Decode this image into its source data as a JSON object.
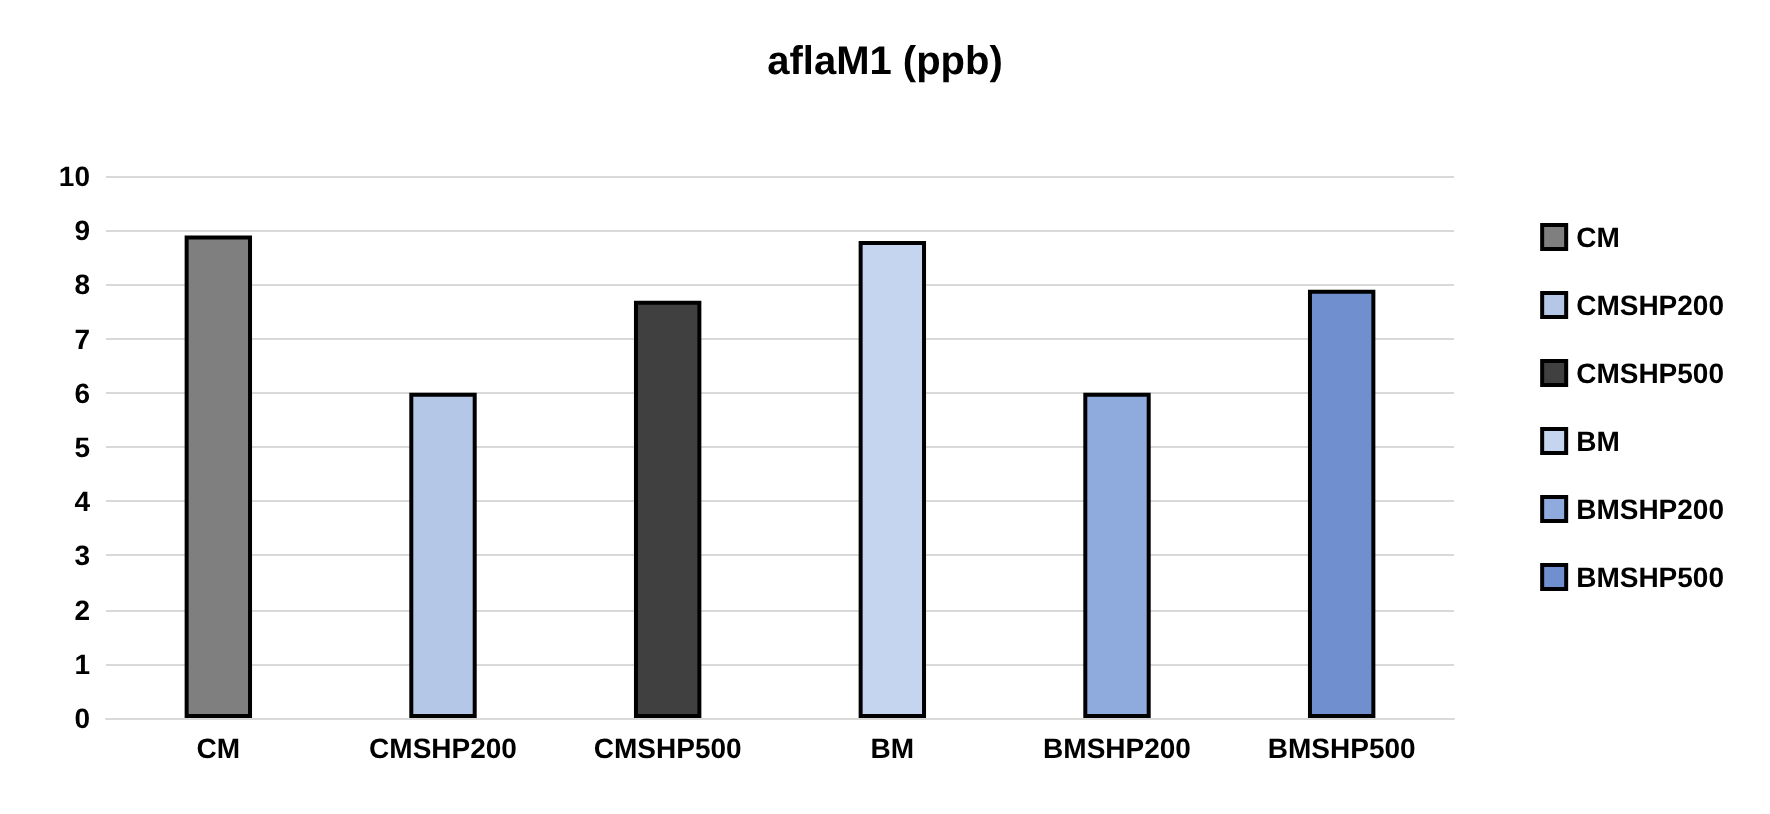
{
  "chart_data": {
    "type": "bar",
    "title": "aflaM1 (ppb)",
    "categories": [
      "CM",
      "CMSHP200",
      "CMSHP500",
      "BM",
      "BMSHP200",
      "BMSHP500"
    ],
    "series": [
      {
        "name": "CM",
        "color": "#7f7f7f",
        "values": [
          8.9,
          null,
          null,
          null,
          null,
          null
        ]
      },
      {
        "name": "CMSHP200",
        "color": "#b4c7e7",
        "values": [
          null,
          6.0,
          null,
          null,
          null,
          null
        ]
      },
      {
        "name": "CMSHP500",
        "color": "#404040",
        "values": [
          null,
          null,
          7.7,
          null,
          null,
          null
        ]
      },
      {
        "name": "BM",
        "color": "#c5d5ef",
        "values": [
          null,
          null,
          null,
          8.8,
          null,
          null
        ]
      },
      {
        "name": "BMSHP200",
        "color": "#8faadc",
        "values": [
          null,
          null,
          null,
          null,
          6.0,
          null
        ]
      },
      {
        "name": "BMSHP500",
        "color": "#6f8fcf",
        "values": [
          null,
          null,
          null,
          null,
          null,
          7.9
        ]
      }
    ],
    "stacked": true,
    "ylim": [
      0,
      10
    ],
    "yticks": [
      0,
      1,
      2,
      3,
      4,
      5,
      6,
      7,
      8,
      9,
      10
    ],
    "grid": "y",
    "legend": "right"
  }
}
